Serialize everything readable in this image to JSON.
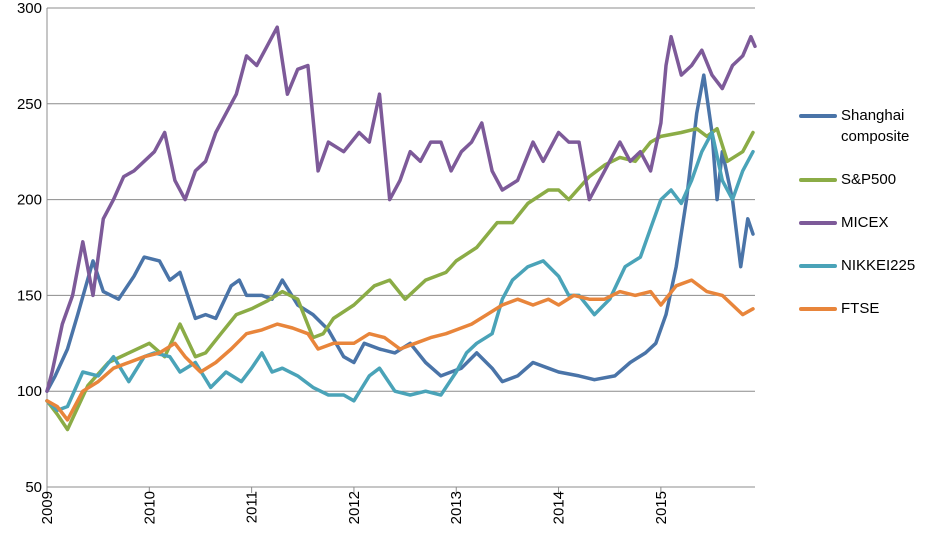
{
  "chart_data": {
    "type": "line",
    "title": "",
    "xlabel": "",
    "ylabel": "",
    "ylim": [
      50,
      300
    ],
    "yticks": [
      50,
      100,
      150,
      200,
      250,
      300
    ],
    "xlim": [
      2009.0,
      2015.92
    ],
    "xticks": [
      "2009",
      "2010",
      "2011",
      "2012",
      "2013",
      "2014",
      "2015"
    ],
    "grid": "horizontal",
    "legend_position": "right",
    "series": [
      {
        "name": "Shanghai composite",
        "color": "#4a74a8",
        "x": [
          2009.0,
          2009.08,
          2009.2,
          2009.3,
          2009.45,
          2009.55,
          2009.7,
          2009.85,
          2009.95,
          2010.1,
          2010.2,
          2010.3,
          2010.45,
          2010.55,
          2010.65,
          2010.8,
          2010.88,
          2010.95,
          2011.1,
          2011.2,
          2011.3,
          2011.45,
          2011.6,
          2011.75,
          2011.9,
          2012.0,
          2012.1,
          2012.25,
          2012.4,
          2012.55,
          2012.7,
          2012.85,
          2012.95,
          2013.05,
          2013.2,
          2013.35,
          2013.45,
          2013.6,
          2013.75,
          2013.9,
          2014.0,
          2014.2,
          2014.35,
          2014.55,
          2014.7,
          2014.85,
          2014.95,
          2015.05,
          2015.15,
          2015.25,
          2015.35,
          2015.42,
          2015.5,
          2015.55,
          2015.6,
          2015.7,
          2015.78,
          2015.85,
          2015.9
        ],
        "values": [
          100,
          108,
          122,
          140,
          168,
          152,
          148,
          160,
          170,
          168,
          158,
          162,
          138,
          140,
          138,
          155,
          158,
          150,
          150,
          148,
          158,
          145,
          140,
          132,
          118,
          115,
          125,
          122,
          120,
          125,
          115,
          108,
          110,
          112,
          120,
          112,
          105,
          108,
          115,
          112,
          110,
          108,
          106,
          108,
          115,
          120,
          125,
          140,
          165,
          200,
          245,
          265,
          235,
          200,
          225,
          200,
          165,
          190,
          182
        ]
      },
      {
        "name": "S&P500",
        "color": "#8bac46",
        "x": [
          2009.0,
          2009.1,
          2009.2,
          2009.4,
          2009.6,
          2009.8,
          2010.0,
          2010.15,
          2010.3,
          2010.45,
          2010.55,
          2010.7,
          2010.85,
          2011.0,
          2011.15,
          2011.3,
          2011.45,
          2011.6,
          2011.7,
          2011.8,
          2012.0,
          2012.2,
          2012.35,
          2012.5,
          2012.7,
          2012.9,
          2013.0,
          2013.2,
          2013.4,
          2013.55,
          2013.7,
          2013.9,
          2014.0,
          2014.1,
          2014.3,
          2014.45,
          2014.6,
          2014.75,
          2014.9,
          2015.0,
          2015.2,
          2015.35,
          2015.45,
          2015.55,
          2015.65,
          2015.8,
          2015.9
        ],
        "values": [
          95,
          88,
          80,
          103,
          115,
          120,
          125,
          118,
          135,
          118,
          120,
          130,
          140,
          143,
          147,
          152,
          148,
          128,
          130,
          138,
          145,
          155,
          158,
          148,
          158,
          162,
          168,
          175,
          188,
          188,
          198,
          205,
          205,
          200,
          212,
          218,
          222,
          220,
          230,
          233,
          235,
          237,
          233,
          237,
          220,
          225,
          235
        ]
      },
      {
        "name": "MICEX",
        "color": "#7d5a99",
        "x": [
          2009.0,
          2009.05,
          2009.15,
          2009.25,
          2009.35,
          2009.45,
          2009.55,
          2009.65,
          2009.75,
          2009.85,
          2009.95,
          2010.05,
          2010.15,
          2010.25,
          2010.35,
          2010.45,
          2010.55,
          2010.65,
          2010.75,
          2010.85,
          2010.95,
          2011.05,
          2011.15,
          2011.25,
          2011.35,
          2011.45,
          2011.55,
          2011.65,
          2011.75,
          2011.9,
          2012.05,
          2012.15,
          2012.25,
          2012.35,
          2012.45,
          2012.55,
          2012.65,
          2012.75,
          2012.85,
          2012.95,
          2013.05,
          2013.15,
          2013.25,
          2013.35,
          2013.45,
          2013.6,
          2013.75,
          2013.85,
          2014.0,
          2014.1,
          2014.2,
          2014.3,
          2014.45,
          2014.6,
          2014.7,
          2014.8,
          2014.9,
          2015.0,
          2015.05,
          2015.1,
          2015.2,
          2015.3,
          2015.4,
          2015.5,
          2015.6,
          2015.7,
          2015.8,
          2015.88,
          2015.92
        ],
        "values": [
          100,
          110,
          135,
          150,
          178,
          150,
          190,
          200,
          212,
          215,
          220,
          225,
          235,
          210,
          200,
          215,
          220,
          235,
          245,
          255,
          275,
          270,
          280,
          290,
          255,
          268,
          270,
          215,
          230,
          225,
          235,
          230,
          255,
          200,
          210,
          225,
          220,
          230,
          230,
          215,
          225,
          230,
          240,
          215,
          205,
          210,
          230,
          220,
          235,
          230,
          230,
          200,
          215,
          230,
          220,
          225,
          215,
          240,
          270,
          285,
          265,
          270,
          278,
          265,
          258,
          270,
          275,
          285,
          280
        ]
      },
      {
        "name": "NIKKEI225",
        "color": "#4aa3b8",
        "x": [
          2009.0,
          2009.1,
          2009.2,
          2009.35,
          2009.5,
          2009.65,
          2009.8,
          2009.95,
          2010.05,
          2010.2,
          2010.3,
          2010.45,
          2010.6,
          2010.75,
          2010.9,
          2011.0,
          2011.1,
          2011.2,
          2011.3,
          2011.45,
          2011.6,
          2011.75,
          2011.9,
          2012.0,
          2012.15,
          2012.25,
          2012.4,
          2012.55,
          2012.7,
          2012.85,
          2013.0,
          2013.1,
          2013.2,
          2013.35,
          2013.45,
          2013.55,
          2013.7,
          2013.85,
          2014.0,
          2014.1,
          2014.2,
          2014.35,
          2014.5,
          2014.65,
          2014.8,
          2014.9,
          2015.0,
          2015.1,
          2015.2,
          2015.3,
          2015.4,
          2015.5,
          2015.6,
          2015.7,
          2015.8,
          2015.9
        ],
        "values": [
          95,
          90,
          92,
          110,
          108,
          118,
          105,
          118,
          120,
          118,
          110,
          115,
          102,
          110,
          105,
          112,
          120,
          110,
          112,
          108,
          102,
          98,
          98,
          95,
          108,
          112,
          100,
          98,
          100,
          98,
          110,
          120,
          125,
          130,
          148,
          158,
          165,
          168,
          160,
          150,
          150,
          140,
          148,
          165,
          170,
          185,
          200,
          205,
          198,
          210,
          225,
          235,
          210,
          200,
          215,
          225
        ]
      },
      {
        "name": "FTSE",
        "color": "#e8853b",
        "x": [
          2009.0,
          2009.1,
          2009.2,
          2009.35,
          2009.5,
          2009.65,
          2009.8,
          2009.95,
          2010.1,
          2010.25,
          2010.35,
          2010.5,
          2010.65,
          2010.8,
          2010.95,
          2011.1,
          2011.25,
          2011.4,
          2011.55,
          2011.65,
          2011.8,
          2012.0,
          2012.15,
          2012.3,
          2012.45,
          2012.6,
          2012.75,
          2012.9,
          2013.0,
          2013.15,
          2013.3,
          2013.45,
          2013.6,
          2013.75,
          2013.9,
          2014.0,
          2014.15,
          2014.3,
          2014.45,
          2014.6,
          2014.75,
          2014.9,
          2015.0,
          2015.15,
          2015.3,
          2015.45,
          2015.6,
          2015.7,
          2015.8,
          2015.9
        ],
        "values": [
          95,
          92,
          85,
          100,
          105,
          112,
          115,
          118,
          120,
          125,
          118,
          110,
          115,
          122,
          130,
          132,
          135,
          133,
          130,
          122,
          125,
          125,
          130,
          128,
          122,
          125,
          128,
          130,
          132,
          135,
          140,
          145,
          148,
          145,
          148,
          145,
          150,
          148,
          148,
          152,
          150,
          152,
          145,
          155,
          158,
          152,
          150,
          145,
          140,
          143
        ]
      }
    ]
  }
}
